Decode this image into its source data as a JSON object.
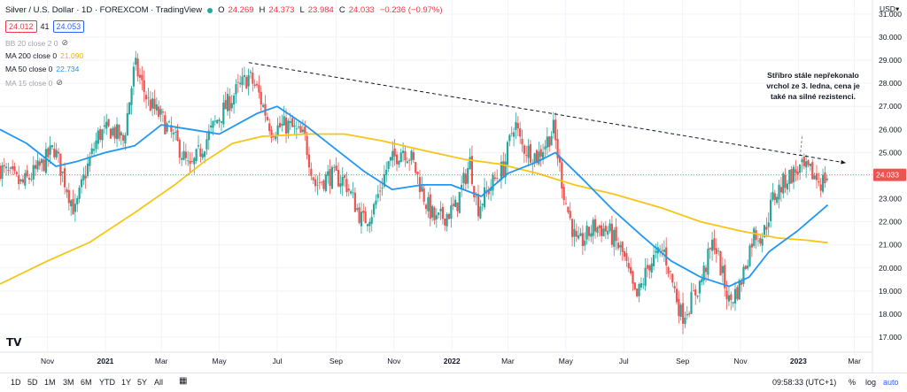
{
  "header": {
    "symbol": "Silver / U.S. Dollar · 1D · FOREXCOM · TradingView",
    "open_label": "O",
    "open": "24.269",
    "high_label": "H",
    "high": "24.373",
    "low_label": "L",
    "low": "23.984",
    "close_label": "C",
    "close": "24.033",
    "change": "−0.236 (−0.97%)",
    "sell_price": "24.012",
    "spread": "41",
    "buy_price": "24.053"
  },
  "currency_label": "USD▾",
  "indicators": [
    {
      "label": "BB 20 close 2 0",
      "value": "",
      "color": "#a0a3ab",
      "hidden": true
    },
    {
      "label": "MA 200 close 0",
      "value": "21.090",
      "color": "#f5c518",
      "hidden": false
    },
    {
      "label": "MA 50 close 0",
      "value": "22.734",
      "color": "#2196f3",
      "hidden": false
    },
    {
      "label": "MA 15 close 0",
      "value": "",
      "color": "#a0a3ab",
      "hidden": true
    }
  ],
  "annotation": "Stříbro stále nepřekonalo vrchol ze 3. ledna, cena je také na silné rezistenci.",
  "toolbar": {
    "ranges": [
      "1D",
      "5D",
      "1M",
      "3M",
      "6M",
      "YTD",
      "1Y",
      "5Y",
      "All"
    ],
    "time": "09:58:33 (UTC+1)",
    "percent": "%",
    "log": "log",
    "auto": "auto"
  },
  "chart_data": {
    "type": "candlestick",
    "colors": {
      "up": "#26a69a",
      "down": "#ef5350",
      "ma200": "#f5c518",
      "ma50": "#2196f3",
      "trendline": "#131722",
      "current_price_line": "#ef5350",
      "price_label_bg": "#ef5350"
    },
    "y_ticks": [
      "31.000",
      "30.000",
      "29.000",
      "28.000",
      "27.000",
      "26.000",
      "25.000",
      "24.000",
      "23.000",
      "22.000",
      "21.000",
      "20.000",
      "19.000",
      "18.000",
      "17.000"
    ],
    "ylim": [
      16.5,
      31.5
    ],
    "x_ticks": [
      "Nov",
      "2021",
      "Mar",
      "May",
      "Jul",
      "Sep",
      "Nov",
      "2022",
      "Mar",
      "May",
      "Jul",
      "Sep",
      "Nov",
      "2023",
      "Mar"
    ],
    "x_tick_dates": [
      "2020-11-01",
      "2021-01-01",
      "2021-03-01",
      "2021-05-01",
      "2021-07-01",
      "2021-09-01",
      "2021-11-01",
      "2022-01-01",
      "2022-03-01",
      "2022-05-01",
      "2022-07-01",
      "2022-09-01",
      "2022-11-01",
      "2023-01-01",
      "2023-03-01"
    ],
    "x_range": [
      "2020-09-12",
      "2023-03-20"
    ],
    "current_price": "24.033",
    "trendline": {
      "start": {
        "date": "2021-06-01",
        "price": 28.9
      },
      "end": {
        "date": "2023-02-20",
        "price": 24.55
      }
    },
    "annotation_pointer": {
      "date": "2023-01-03",
      "from_price": 25.7,
      "to_price": 24.9
    },
    "close_path": [
      [
        "2020-09-12",
        24.3
      ],
      [
        "2020-10-05",
        23.6
      ],
      [
        "2020-10-25",
        24.4
      ],
      [
        "2020-11-08",
        25.2
      ],
      [
        "2020-11-30",
        22.4
      ],
      [
        "2020-12-10",
        24.0
      ],
      [
        "2020-12-25",
        25.8
      ],
      [
        "2021-01-08",
        26.0
      ],
      [
        "2021-01-20",
        25.5
      ],
      [
        "2021-02-01",
        28.8
      ],
      [
        "2021-02-15",
        27.2
      ],
      [
        "2021-03-01",
        26.5
      ],
      [
        "2021-03-20",
        25.2
      ],
      [
        "2021-03-31",
        24.2
      ],
      [
        "2021-04-15",
        25.4
      ],
      [
        "2021-04-30",
        26.5
      ],
      [
        "2021-05-18",
        27.6
      ],
      [
        "2021-06-01",
        28.3
      ],
      [
        "2021-06-10",
        27.7
      ],
      [
        "2021-06-25",
        26.0
      ],
      [
        "2021-07-12",
        26.2
      ],
      [
        "2021-07-30",
        25.6
      ],
      [
        "2021-08-10",
        23.6
      ],
      [
        "2021-08-25",
        24.0
      ],
      [
        "2021-09-10",
        23.8
      ],
      [
        "2021-09-29",
        22.0
      ],
      [
        "2021-10-10",
        22.5
      ],
      [
        "2021-10-25",
        24.4
      ],
      [
        "2021-11-10",
        25.2
      ],
      [
        "2021-11-20",
        24.7
      ],
      [
        "2021-12-05",
        22.8
      ],
      [
        "2021-12-15",
        22.0
      ],
      [
        "2022-01-05",
        22.6
      ],
      [
        "2022-01-20",
        24.6
      ],
      [
        "2022-01-28",
        22.6
      ],
      [
        "2022-02-10",
        23.5
      ],
      [
        "2022-02-25",
        24.4
      ],
      [
        "2022-03-08",
        26.4
      ],
      [
        "2022-03-15",
        25.3
      ],
      [
        "2022-04-01",
        24.8
      ],
      [
        "2022-04-18",
        26.0
      ],
      [
        "2022-04-30",
        23.0
      ],
      [
        "2022-05-13",
        20.9
      ],
      [
        "2022-05-31",
        21.8
      ],
      [
        "2022-06-15",
        21.6
      ],
      [
        "2022-06-30",
        20.6
      ],
      [
        "2022-07-14",
        18.6
      ],
      [
        "2022-07-28",
        20.2
      ],
      [
        "2022-08-12",
        20.8
      ],
      [
        "2022-08-31",
        17.9
      ],
      [
        "2022-09-08",
        18.4
      ],
      [
        "2022-09-20",
        19.4
      ],
      [
        "2022-10-04",
        21.2
      ],
      [
        "2022-10-20",
        18.5
      ],
      [
        "2022-10-31",
        19.2
      ],
      [
        "2022-11-15",
        21.5
      ],
      [
        "2022-11-25",
        21.4
      ],
      [
        "2022-12-05",
        23.0
      ],
      [
        "2022-12-20",
        23.9
      ],
      [
        "2023-01-03",
        24.3
      ],
      [
        "2023-01-15",
        24.1
      ],
      [
        "2023-01-25",
        23.7
      ],
      [
        "2023-02-01",
        24.0
      ]
    ],
    "ma200_path": [
      [
        "2020-09-12",
        19.3
      ],
      [
        "2020-11-01",
        20.3
      ],
      [
        "2020-12-15",
        21.1
      ],
      [
        "2021-02-01",
        22.4
      ],
      [
        "2021-03-15",
        23.6
      ],
      [
        "2021-04-15",
        24.6
      ],
      [
        "2021-05-15",
        25.4
      ],
      [
        "2021-06-15",
        25.7
      ],
      [
        "2021-08-01",
        25.8
      ],
      [
        "2021-09-10",
        25.8
      ],
      [
        "2021-10-20",
        25.5
      ],
      [
        "2021-12-01",
        25.1
      ],
      [
        "2022-01-15",
        24.7
      ],
      [
        "2022-02-20",
        24.5
      ],
      [
        "2022-04-01",
        24.1
      ],
      [
        "2022-05-10",
        23.6
      ],
      [
        "2022-06-20",
        23.2
      ],
      [
        "2022-08-10",
        22.6
      ],
      [
        "2022-09-20",
        22.0
      ],
      [
        "2022-11-01",
        21.6
      ],
      [
        "2022-12-10",
        21.3
      ],
      [
        "2023-01-10",
        21.2
      ],
      [
        "2023-02-01",
        21.09
      ]
    ],
    "ma50_path": [
      [
        "2020-09-12",
        26.0
      ],
      [
        "2020-10-10",
        25.4
      ],
      [
        "2020-11-10",
        24.4
      ],
      [
        "2020-12-01",
        24.6
      ],
      [
        "2021-01-01",
        25.0
      ],
      [
        "2021-02-01",
        25.3
      ],
      [
        "2021-03-01",
        26.2
      ],
      [
        "2021-04-01",
        26.0
      ],
      [
        "2021-05-01",
        25.8
      ],
      [
        "2021-06-10",
        26.7
      ],
      [
        "2021-07-01",
        27.0
      ],
      [
        "2021-07-30",
        26.2
      ],
      [
        "2021-08-30",
        25.2
      ],
      [
        "2021-09-30",
        24.2
      ],
      [
        "2021-10-30",
        23.4
      ],
      [
        "2021-12-01",
        23.6
      ],
      [
        "2021-12-31",
        23.6
      ],
      [
        "2022-02-01",
        23.1
      ],
      [
        "2022-03-01",
        24.1
      ],
      [
        "2022-04-01",
        24.6
      ],
      [
        "2022-04-20",
        25.0
      ],
      [
        "2022-05-20",
        23.8
      ],
      [
        "2022-06-20",
        22.5
      ],
      [
        "2022-07-20",
        21.4
      ],
      [
        "2022-08-20",
        20.3
      ],
      [
        "2022-09-20",
        19.6
      ],
      [
        "2022-10-20",
        19.2
      ],
      [
        "2022-11-10",
        19.6
      ],
      [
        "2022-12-01",
        20.7
      ],
      [
        "2022-12-31",
        21.6
      ],
      [
        "2023-02-01",
        22.73
      ]
    ]
  }
}
